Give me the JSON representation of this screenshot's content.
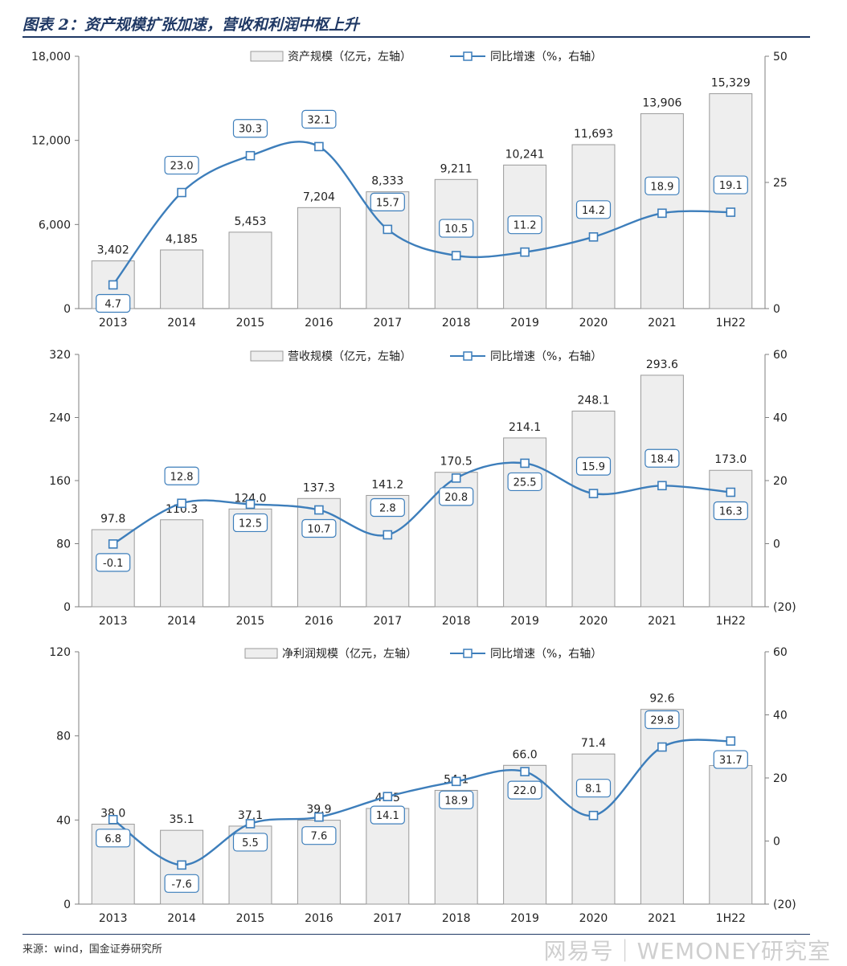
{
  "title": "图表 2：资产规模扩张加速，营收和利润中枢上升",
  "source": "来源：wind，国金证券研究所",
  "watermark": "网易号｜WEMONEY研究室",
  "colors": {
    "bar_fill": "#eeeeee",
    "bar_stroke": "#9a9a9a",
    "line": "#3d7ebb",
    "marker_fill": "#ffffff",
    "label_border": "#3d7ebb",
    "title": "#1f3864"
  },
  "chart_data": [
    {
      "type": "bar+line",
      "categories": [
        "2013",
        "2014",
        "2015",
        "2016",
        "2017",
        "2018",
        "2019",
        "2020",
        "2021",
        "1H22"
      ],
      "bar_series": {
        "name": "资产规模（亿元，左轴）",
        "values": [
          3402,
          4185,
          5453,
          7204,
          8333,
          9211,
          10241,
          11693,
          13906,
          15329
        ],
        "labels": [
          "3,402",
          "4,185",
          "5,453",
          "7,204",
          "8,333",
          "9,211",
          "10,241",
          "11,693",
          "13,906",
          "15,329"
        ]
      },
      "line_series": {
        "name": "同比增速（%，右轴）",
        "values": [
          4.7,
          23.0,
          30.3,
          32.1,
          15.7,
          10.5,
          11.2,
          14.2,
          18.9,
          19.1
        ],
        "labels": [
          "4.7",
          "23.0",
          "30.3",
          "32.1",
          "15.7",
          "10.5",
          "11.2",
          "14.2",
          "18.9",
          "19.1"
        ]
      },
      "left_axis": {
        "ylim": [
          0,
          18000
        ],
        "ticks": [
          0,
          6000,
          12000,
          18000
        ],
        "tick_labels": [
          "0",
          "6,000",
          "12,000",
          "18,000"
        ]
      },
      "right_axis": {
        "ylim": [
          0,
          50
        ],
        "ticks": [
          0,
          25,
          50
        ],
        "tick_labels": [
          "0",
          "25",
          "50"
        ]
      },
      "legend": "top-center",
      "grid": false
    },
    {
      "type": "bar+line",
      "categories": [
        "2013",
        "2014",
        "2015",
        "2016",
        "2017",
        "2018",
        "2019",
        "2020",
        "2021",
        "1H22"
      ],
      "bar_series": {
        "name": "营收规模（亿元，左轴）",
        "values": [
          97.8,
          110.3,
          124.0,
          137.3,
          141.2,
          170.5,
          214.1,
          248.1,
          293.6,
          173.0
        ],
        "labels": [
          "97.8",
          "110.3",
          "124.0",
          "137.3",
          "141.2",
          "170.5",
          "214.1",
          "248.1",
          "293.6",
          "173.0"
        ]
      },
      "line_series": {
        "name": "同比增速（%，右轴）",
        "values": [
          -0.1,
          12.8,
          12.5,
          10.7,
          2.8,
          20.8,
          25.5,
          15.9,
          18.4,
          16.3
        ],
        "labels": [
          "-0.1",
          "12.8",
          "12.5",
          "10.7",
          "2.8",
          "20.8",
          "25.5",
          "15.9",
          "18.4",
          "16.3"
        ]
      },
      "left_axis": {
        "ylim": [
          0,
          320
        ],
        "ticks": [
          0,
          80,
          160,
          240,
          320
        ],
        "tick_labels": [
          "0",
          "80",
          "160",
          "240",
          "320"
        ]
      },
      "right_axis": {
        "ylim": [
          -20,
          60
        ],
        "ticks": [
          -20,
          0,
          20,
          40,
          60
        ],
        "tick_labels": [
          "(20)",
          "0",
          "20",
          "40",
          "60"
        ]
      },
      "legend": "top-center",
      "grid": false
    },
    {
      "type": "bar+line",
      "categories": [
        "2013",
        "2014",
        "2015",
        "2016",
        "2017",
        "2018",
        "2019",
        "2020",
        "2021",
        "1H22"
      ],
      "bar_series": {
        "name": "净利润规模（亿元，左轴）",
        "values": [
          38.0,
          35.1,
          37.1,
          39.9,
          45.5,
          54.1,
          66.0,
          71.4,
          92.6,
          65.9
        ],
        "labels": [
          "38.0",
          "35.1",
          "37.1",
          "39.9",
          "45.5",
          "54.1",
          "66.0",
          "71.4",
          "92.6",
          ""
        ]
      },
      "line_series": {
        "name": "同比增速（%，右轴）",
        "values": [
          6.8,
          -7.6,
          5.5,
          7.6,
          14.1,
          18.9,
          22.0,
          8.1,
          29.8,
          31.7
        ],
        "labels": [
          "6.8",
          "-7.6",
          "5.5",
          "7.6",
          "14.1",
          "18.9",
          "22.0",
          "8.1",
          "29.8",
          "31.7"
        ]
      },
      "left_axis": {
        "ylim": [
          0,
          120
        ],
        "ticks": [
          0,
          40,
          80,
          120
        ],
        "tick_labels": [
          "0",
          "40",
          "80",
          "120"
        ]
      },
      "right_axis": {
        "ylim": [
          -20,
          60
        ],
        "ticks": [
          -20,
          0,
          20,
          40,
          60
        ],
        "tick_labels": [
          "(20)",
          "0",
          "20",
          "40",
          "60"
        ]
      },
      "legend": "top-center",
      "grid": false
    }
  ]
}
